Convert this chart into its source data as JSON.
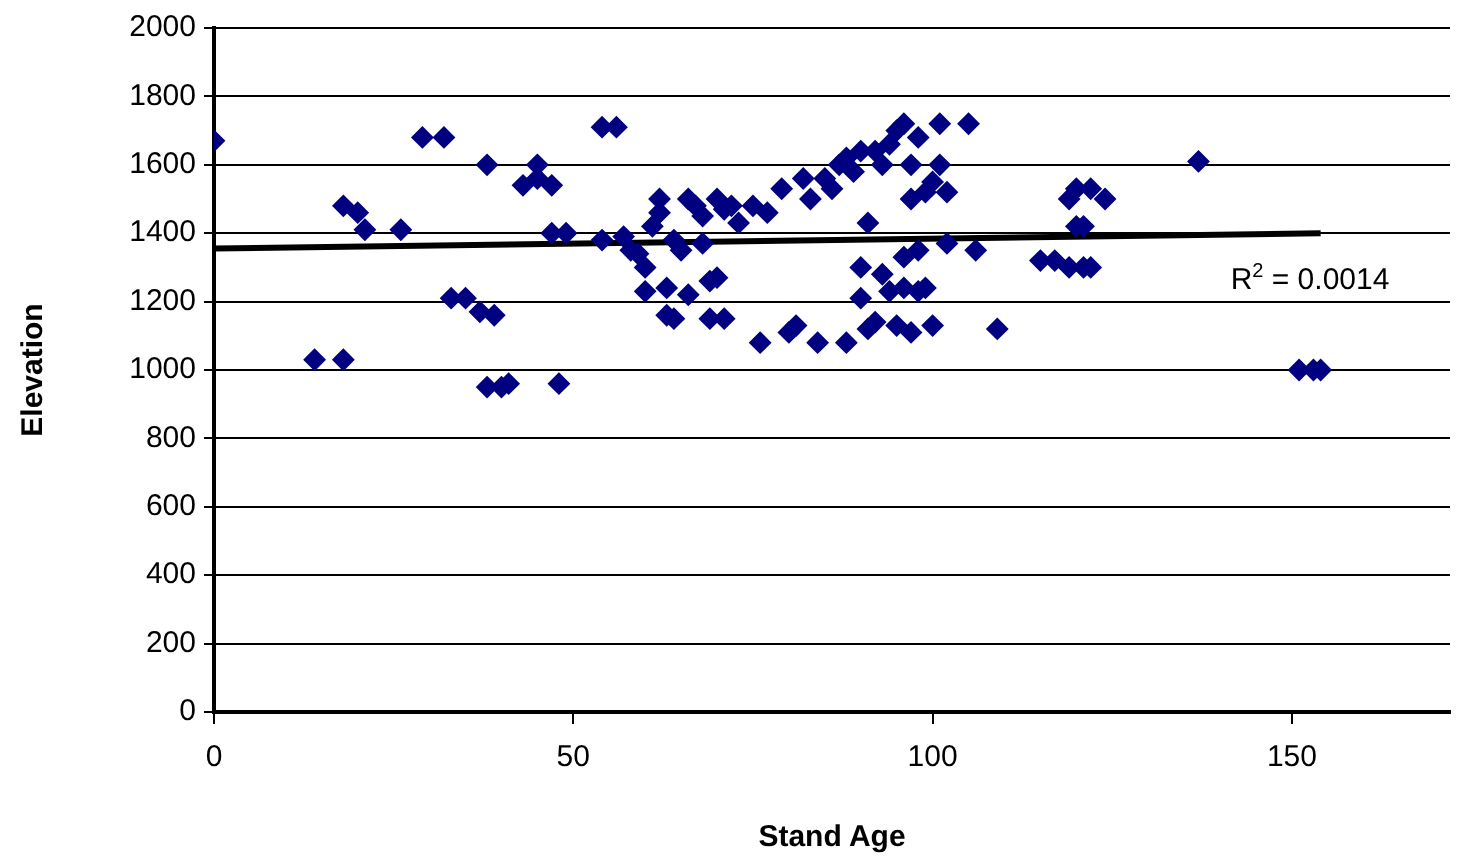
{
  "chart_data": {
    "type": "scatter",
    "xlabel": "Stand Age",
    "ylabel": "Elevation",
    "xlim": [
      0,
      172
    ],
    "xticks": [
      0,
      50,
      100,
      150
    ],
    "ylim": [
      0,
      2000
    ],
    "yticks": [
      0,
      200,
      400,
      600,
      800,
      1000,
      1200,
      1400,
      1600,
      1800,
      2000
    ],
    "grid": "y",
    "legend": false,
    "marker": "diamond",
    "annotations": [
      "R$^{2}$ = 0.0014"
    ],
    "series": [
      {
        "color": "#000080",
        "x": [
          0,
          14,
          18,
          18,
          20,
          21,
          26,
          29,
          32,
          33,
          35,
          37,
          38,
          39,
          40,
          41,
          38,
          43,
          45,
          45,
          47,
          47,
          49,
          48,
          54,
          56,
          54,
          57,
          58,
          59,
          60,
          60,
          61,
          62,
          62,
          63,
          63,
          64,
          64,
          65,
          66,
          66,
          67,
          68,
          68,
          69,
          69,
          70,
          70,
          71,
          71,
          72,
          73,
          75,
          76,
          77,
          79,
          80,
          81,
          82,
          83,
          84,
          85,
          86,
          87,
          88,
          88,
          89,
          90,
          90,
          90,
          91,
          91,
          92,
          92,
          93,
          93,
          94,
          94,
          95,
          95,
          96,
          96,
          96,
          97,
          97,
          97,
          98,
          98,
          98,
          99,
          99,
          100,
          100,
          101,
          101,
          102,
          102,
          105,
          106,
          109,
          115,
          117,
          119,
          119,
          120,
          120,
          121,
          121,
          122,
          122,
          124,
          137,
          151,
          153,
          154
        ],
        "values": [
          1670,
          1030,
          1030,
          1480,
          1460,
          1410,
          1410,
          1680,
          1680,
          1210,
          1210,
          1170,
          950,
          1160,
          950,
          960,
          1600,
          1540,
          1560,
          1600,
          1540,
          1400,
          1400,
          960,
          1710,
          1710,
          1380,
          1390,
          1350,
          1340,
          1300,
          1230,
          1420,
          1460,
          1500,
          1240,
          1160,
          1380,
          1150,
          1350,
          1220,
          1500,
          1480,
          1450,
          1370,
          1260,
          1150,
          1500,
          1270,
          1470,
          1150,
          1480,
          1430,
          1480,
          1080,
          1460,
          1530,
          1110,
          1130,
          1560,
          1500,
          1080,
          1560,
          1530,
          1600,
          1080,
          1620,
          1580,
          1640,
          1300,
          1210,
          1430,
          1120,
          1640,
          1140,
          1280,
          1600,
          1660,
          1230,
          1700,
          1130,
          1720,
          1330,
          1240,
          1600,
          1500,
          1110,
          1680,
          1350,
          1230,
          1520,
          1240,
          1550,
          1130,
          1720,
          1600,
          1520,
          1370,
          1720,
          1350,
          1120,
          1320,
          1320,
          1500,
          1300,
          1530,
          1420,
          1300,
          1420,
          1530,
          1300,
          1500,
          1610,
          1000,
          1000,
          1000
        ]
      },
      {
        "type": "line",
        "color": "#000000",
        "x": [
          0,
          154
        ],
        "values": [
          1355,
          1400
        ],
        "marker": "none"
      }
    ]
  }
}
